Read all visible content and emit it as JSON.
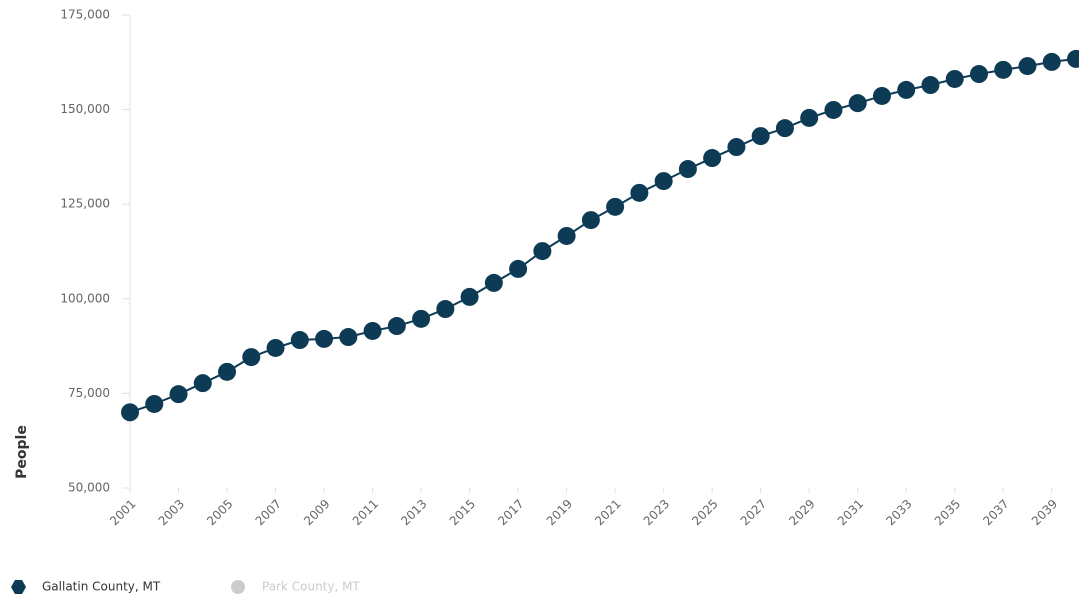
{
  "chart_data": {
    "type": "line",
    "y_label": "People",
    "x": [
      2001,
      2002,
      2003,
      2004,
      2005,
      2006,
      2007,
      2008,
      2009,
      2010,
      2011,
      2012,
      2013,
      2014,
      2015,
      2016,
      2017,
      2018,
      2019,
      2020,
      2021,
      2022,
      2023,
      2024,
      2025,
      2026,
      2027,
      2028,
      2029,
      2030,
      2031,
      2032,
      2033,
      2034,
      2035,
      2036,
      2037,
      2038,
      2039,
      2040
    ],
    "xlim": [
      2001,
      2040
    ],
    "xticks": [
      2001,
      2003,
      2005,
      2007,
      2009,
      2011,
      2013,
      2015,
      2017,
      2019,
      2021,
      2023,
      2025,
      2027,
      2029,
      2031,
      2033,
      2035,
      2037,
      2039
    ],
    "ylim": [
      50000,
      175000
    ],
    "yticks": [
      {
        "value": 50000,
        "label": "50,000"
      },
      {
        "value": 75000,
        "label": "75,000"
      },
      {
        "value": 100000,
        "label": "100,000"
      },
      {
        "value": 125000,
        "label": "125,000"
      },
      {
        "value": 150000,
        "label": "150,000"
      },
      {
        "value": 175000,
        "label": "175,000"
      }
    ],
    "grid": false,
    "legend": "bottom-left",
    "series": [
      {
        "name": "Gallatin County, MT",
        "color": "#0d3b55",
        "visible": true,
        "values": [
          70000,
          72200,
          74800,
          77700,
          80700,
          84600,
          87000,
          89100,
          89400,
          89900,
          91500,
          92800,
          94700,
          97300,
          100500,
          104200,
          107900,
          112600,
          116600,
          120800,
          124300,
          128000,
          131100,
          134300,
          137200,
          140100,
          143000,
          145100,
          147800,
          149900,
          151700,
          153600,
          155200,
          156500,
          158100,
          159400,
          160500,
          161500,
          162600,
          163400
        ]
      },
      {
        "name": "Park County, MT",
        "color": "#cccccc",
        "visible": false
      }
    ]
  }
}
